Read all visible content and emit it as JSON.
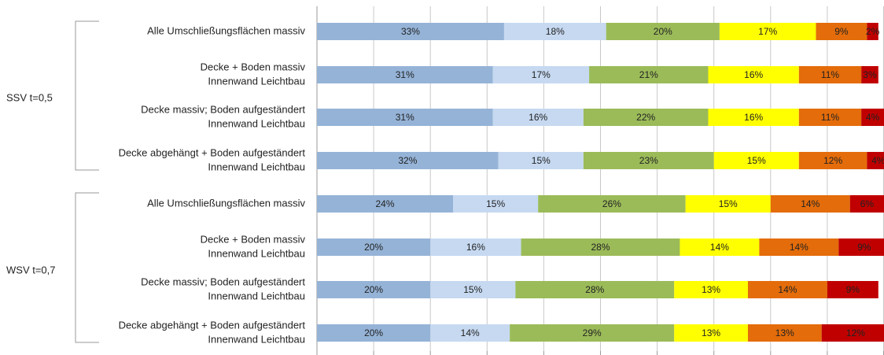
{
  "chart_data": {
    "type": "stacked-bar-horizontal",
    "groups": [
      {
        "label": "SSV t=0,5",
        "rows": [
          0,
          1,
          2,
          3
        ]
      },
      {
        "label": "WSV t=0,7",
        "rows": [
          4,
          5,
          6,
          7
        ]
      }
    ],
    "categories": [
      [
        "Alle Umschließungsflächen massiv"
      ],
      [
        "Decke + Boden massiv",
        "Innenwand Leichtbau"
      ],
      [
        "Decke massiv; Boden aufgeständert",
        "Innenwand Leichtbau"
      ],
      [
        "Decke abgehängt + Boden aufgeständert",
        "Innenwand Leichtbau"
      ],
      [
        "Alle Umschließungsflächen massiv"
      ],
      [
        "Decke + Boden massiv",
        "Innenwand Leichtbau"
      ],
      [
        "Decke massiv; Boden aufgeständert",
        "Innenwand Leichtbau"
      ],
      [
        "Decke abgehängt + Boden aufgeständert",
        "Innenwand Leichtbau"
      ]
    ],
    "series": [
      {
        "color": "#95b3d7",
        "values": [
          33,
          31,
          31,
          32,
          24,
          20,
          20,
          20
        ],
        "value_labels": [
          "33%",
          "31%",
          "31%",
          "32%",
          "24%",
          "20%",
          "20%",
          "20%"
        ]
      },
      {
        "color": "#c6d9f1",
        "values": [
          18,
          17,
          16,
          15,
          15,
          16,
          15,
          14
        ],
        "value_labels": [
          "18%",
          "17%",
          "16%",
          "15%",
          "15%",
          "16%",
          "15%",
          "14%"
        ]
      },
      {
        "color": "#9bbb59",
        "values": [
          20,
          21,
          22,
          23,
          26,
          28,
          28,
          29
        ],
        "value_labels": [
          "20%",
          "21%",
          "22%",
          "23%",
          "26%",
          "28%",
          "28%",
          "29%"
        ]
      },
      {
        "color": "#ffff00",
        "values": [
          17,
          16,
          16,
          15,
          15,
          14,
          13,
          13
        ],
        "value_labels": [
          "17%",
          "16%",
          "16%",
          "15%",
          "15%",
          "14%",
          "13%",
          "13%"
        ]
      },
      {
        "color": "#e46c0a",
        "values": [
          9,
          11,
          11,
          12,
          14,
          14,
          14,
          13
        ],
        "value_labels": [
          "9%",
          "11%",
          "11%",
          "12%",
          "14%",
          "14%",
          "14%",
          "13%"
        ]
      },
      {
        "color": "#c00000",
        "values": [
          2,
          3,
          4,
          4,
          6,
          9,
          9,
          12
        ],
        "value_labels": [
          "2%",
          "3%",
          "4%",
          "4%",
          "6%",
          "9%",
          "9%",
          "12%"
        ]
      }
    ],
    "xlim": [
      0,
      100
    ],
    "xticks": [
      0,
      10,
      20,
      30,
      40,
      50,
      60,
      70,
      80,
      90,
      100
    ],
    "grid": true
  }
}
